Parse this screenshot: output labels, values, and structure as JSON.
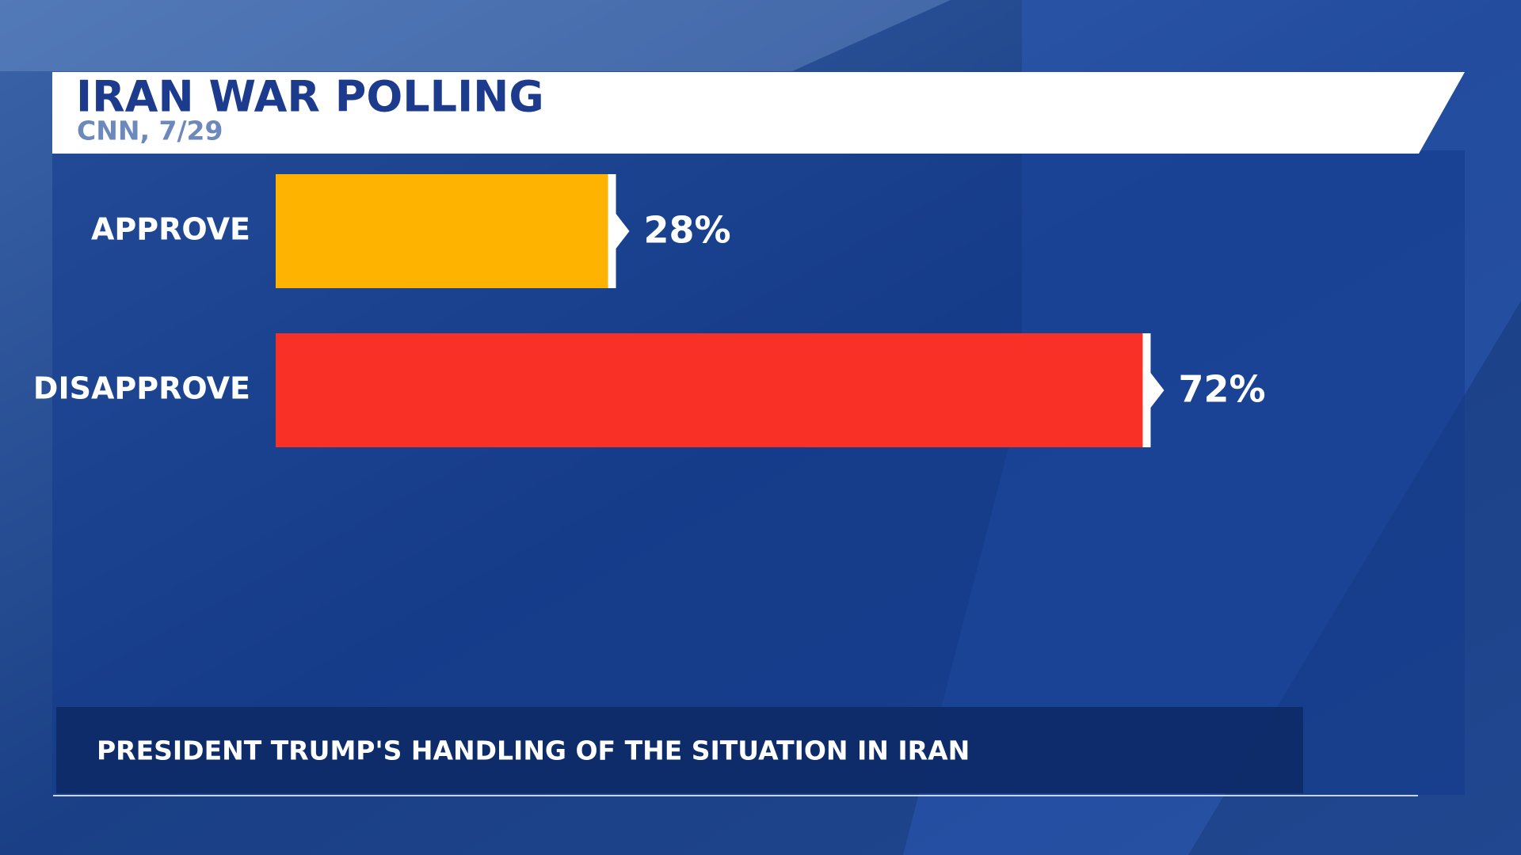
{
  "chart_data": {
    "type": "bar",
    "orientation": "horizontal",
    "title": "IRAN WAR POLLING",
    "subtitle": "CNN, 7/29",
    "note": "PRESIDENT TRUMP'S HANDLING OF THE SITUATION IN IRAN",
    "categories": [
      "APPROVE",
      "DISAPPROVE"
    ],
    "values": [
      28,
      72
    ],
    "value_labels": [
      "28%",
      "72%"
    ],
    "colors": [
      "#fdb300",
      "#f93025"
    ],
    "xlim": [
      0,
      100
    ]
  }
}
